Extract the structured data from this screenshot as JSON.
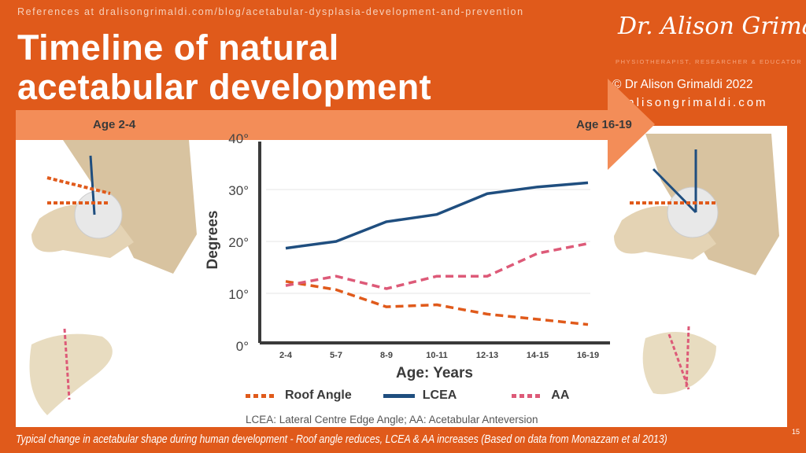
{
  "header": {
    "reference": "References at dralisongrimaldi.com/blog/acetabular-dysplasia-development-and-prevention",
    "title_line1": "Timeline of natural",
    "title_line2": "acetabular development",
    "logo_text": "Dr. Alison Grimaldi",
    "tagline": "PHYSIOTHERAPIST, RESEARCHER & EDUCATOR",
    "copyright": "© Dr Alison Grimaldi 2022",
    "website": "dralisongrimaldi.com"
  },
  "timeline": {
    "start_label": "Age 2-4",
    "end_label": "Age 16-19"
  },
  "footer": {
    "caption": "Typical change in acetabular shape during human development  - Roof angle reduces, LCEA & AA increases (Based on data from Monazzam et al 2013)",
    "page_number": "15",
    "abbreviations": "LCEA: Lateral Centre Edge Angle; AA: Acetabular Anteversion"
  },
  "colors": {
    "background": "#e05a1b",
    "band": "#f38d58",
    "lcea": "#1f4e7f",
    "roof": "#e05a1b",
    "aa": "#dd5a78"
  },
  "chart_data": {
    "type": "line",
    "xlabel": "Age: Years",
    "ylabel": "Degrees",
    "ylim": [
      0,
      40
    ],
    "yticks": [
      "0°",
      "10°",
      "20°",
      "30°",
      "40°"
    ],
    "grid": "horizontal",
    "categories": [
      "2-4",
      "5-7",
      "8-9",
      "10-11",
      "12-13",
      "14-15",
      "16-19"
    ],
    "series": [
      {
        "name": "Roof Angle",
        "style": "dashed",
        "color": "#e05a1b",
        "values": [
          12.3,
          10.7,
          7.4,
          7.8,
          6.0,
          5.0,
          4.0
        ]
      },
      {
        "name": "LCEA",
        "style": "solid",
        "color": "#1f4e7f",
        "values": [
          18.7,
          20.0,
          23.8,
          25.2,
          29.2,
          30.5,
          31.3
        ]
      },
      {
        "name": "AA",
        "style": "dashed",
        "color": "#dd5a78",
        "values": [
          11.5,
          13.3,
          10.9,
          13.3,
          13.3,
          17.7,
          19.6
        ]
      }
    ],
    "legend": "bottom"
  }
}
